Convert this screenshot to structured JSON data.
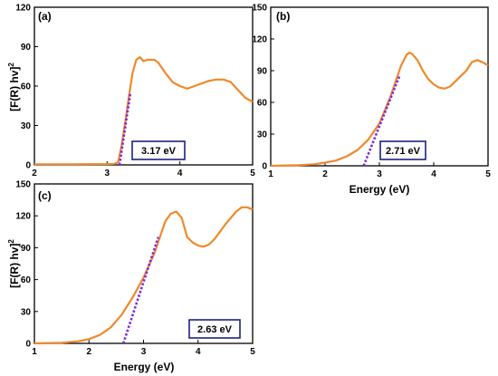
{
  "colors": {
    "curve": "#f0882a",
    "fit": "#7b2be0",
    "box": "#1a237e",
    "axis": "#000000"
  },
  "chart_data": [
    {
      "type": "line",
      "panel_label": "(a)",
      "ylabel": "[F(R) hv]",
      "ylabel_sup": "2",
      "xlabel": "",
      "xlim": [
        2,
        5
      ],
      "ylim": [
        0,
        120
      ],
      "xticks": [
        "2",
        "3",
        "4",
        "5"
      ],
      "yticks": [
        "0",
        "30",
        "60",
        "90",
        "120"
      ],
      "annotation": "3.17 eV",
      "series": [
        {
          "role": "spectrum",
          "x": [
            2.0,
            2.5,
            3.0,
            3.1,
            3.15,
            3.2,
            3.25,
            3.3,
            3.35,
            3.4,
            3.45,
            3.5,
            3.55,
            3.6,
            3.65,
            3.7,
            3.8,
            3.9,
            4.0,
            4.1,
            4.2,
            4.3,
            4.4,
            4.5,
            4.6,
            4.7,
            4.8,
            4.9,
            5.0
          ],
          "y": [
            0.5,
            0.5,
            0.6,
            0.8,
            2,
            15,
            33,
            52,
            70,
            80,
            82,
            79,
            80,
            80,
            80,
            78,
            70,
            63,
            60,
            58,
            60,
            62,
            64,
            65,
            65,
            63,
            57,
            51,
            48
          ]
        },
        {
          "role": "tauc-fit",
          "x": [
            3.17,
            3.32
          ],
          "y": [
            0,
            55
          ]
        }
      ]
    },
    {
      "type": "line",
      "panel_label": "(b)",
      "ylabel": "",
      "ylabel_sup": "",
      "xlabel": "Energy (eV)",
      "xlim": [
        1,
        5
      ],
      "ylim": [
        0,
        150
      ],
      "xticks": [
        "1",
        "2",
        "3",
        "4",
        "5"
      ],
      "yticks": [
        "0",
        "30",
        "60",
        "90",
        "120",
        "150"
      ],
      "annotation": "2.71 eV",
      "series": [
        {
          "role": "spectrum",
          "x": [
            1.0,
            1.5,
            1.8,
            2.0,
            2.2,
            2.4,
            2.6,
            2.8,
            3.0,
            3.2,
            3.3,
            3.4,
            3.5,
            3.55,
            3.6,
            3.7,
            3.8,
            3.9,
            4.0,
            4.1,
            4.2,
            4.3,
            4.4,
            4.5,
            4.6,
            4.7,
            4.8,
            4.9,
            5.0
          ],
          "y": [
            0,
            0.5,
            1.5,
            3,
            5,
            9,
            15,
            25,
            40,
            65,
            80,
            95,
            105,
            107,
            106,
            100,
            90,
            82,
            77,
            74,
            73,
            75,
            80,
            85,
            90,
            98,
            100,
            98,
            95
          ]
        },
        {
          "role": "tauc-fit",
          "x": [
            2.71,
            3.37
          ],
          "y": [
            0,
            85
          ]
        }
      ]
    },
    {
      "type": "line",
      "panel_label": "(c)",
      "ylabel": "[F(R) hv]",
      "ylabel_sup": "2",
      "xlabel": "Energy (eV)",
      "xlim": [
        1,
        5
      ],
      "ylim": [
        0,
        150
      ],
      "xticks": [
        "1",
        "2",
        "3",
        "4",
        "5"
      ],
      "yticks": [
        "0",
        "30",
        "60",
        "90",
        "120",
        "150"
      ],
      "annotation": "2.63 eV",
      "series": [
        {
          "role": "spectrum",
          "x": [
            1.0,
            1.5,
            1.8,
            2.0,
            2.2,
            2.4,
            2.6,
            2.8,
            3.0,
            3.2,
            3.3,
            3.4,
            3.5,
            3.6,
            3.7,
            3.8,
            3.9,
            4.0,
            4.1,
            4.2,
            4.3,
            4.4,
            4.5,
            4.6,
            4.7,
            4.8,
            4.9,
            5.0
          ],
          "y": [
            0,
            0.5,
            2,
            4,
            8,
            15,
            27,
            43,
            62,
            85,
            100,
            115,
            122,
            124,
            118,
            100,
            95,
            92,
            91,
            93,
            98,
            105,
            112,
            118,
            124,
            128,
            128,
            126
          ]
        },
        {
          "role": "tauc-fit",
          "x": [
            2.63,
            3.27
          ],
          "y": [
            0,
            100
          ]
        }
      ]
    }
  ]
}
